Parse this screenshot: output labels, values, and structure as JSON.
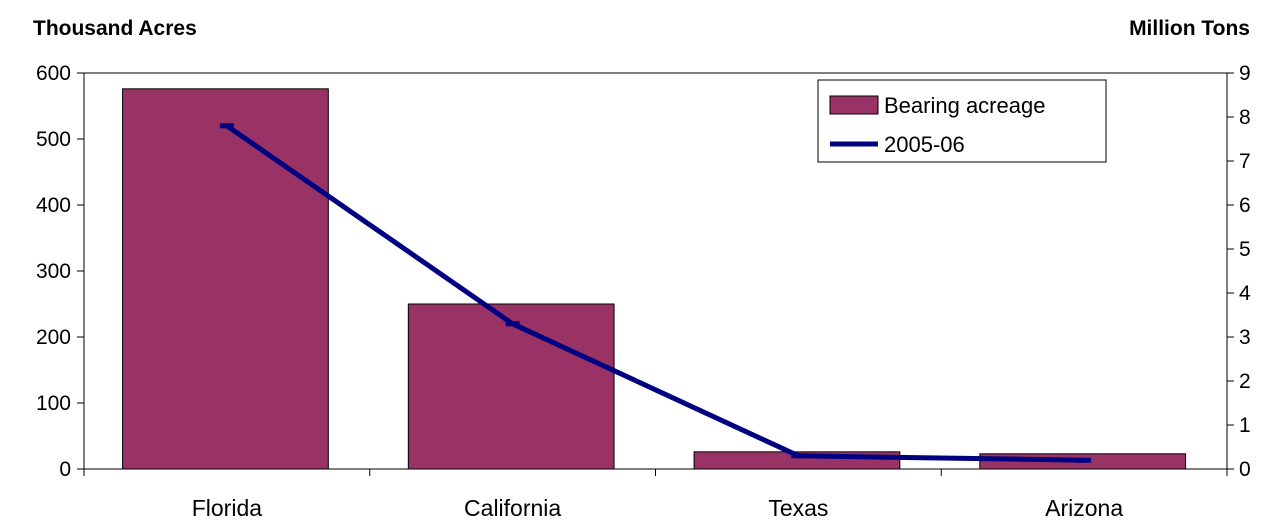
{
  "chart_data": {
    "type": "bar",
    "categories": [
      "Florida",
      "California",
      "Texas",
      "Arizona"
    ],
    "left_axis": {
      "title": "Thousand Acres",
      "ylim": [
        0,
        600
      ],
      "ticks": [
        "0",
        "100",
        "200",
        "300",
        "400",
        "500",
        "600"
      ]
    },
    "right_axis": {
      "title": "Million Tons",
      "ylim": [
        0,
        9
      ],
      "ticks": [
        "0",
        "1",
        "2",
        "3",
        "4",
        "5",
        "6",
        "7",
        "8",
        "9"
      ]
    },
    "series": [
      {
        "name": "Bearing acreage",
        "kind": "bar",
        "axis": "left",
        "color": "#993366",
        "values": [
          576,
          250,
          26,
          23
        ]
      },
      {
        "name": "2005-06",
        "kind": "line",
        "axis": "right",
        "color": "#000080",
        "values": [
          7.8,
          3.3,
          0.3,
          0.2
        ]
      }
    ],
    "legend_position": "top-right",
    "grid": false
  }
}
